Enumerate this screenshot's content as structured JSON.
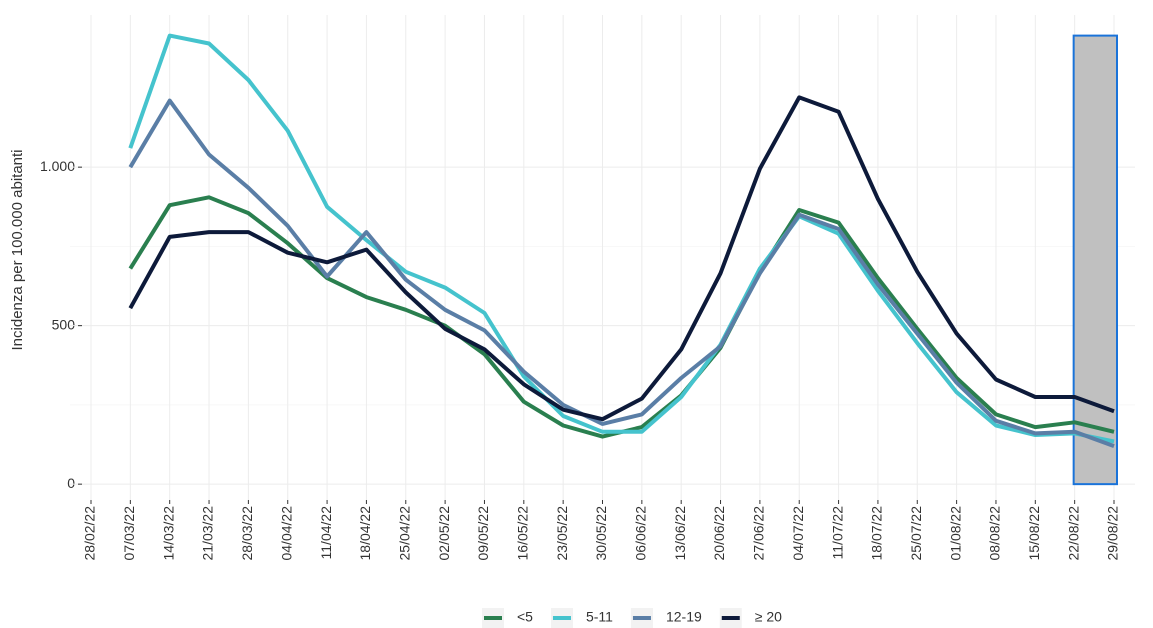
{
  "chart_data": {
    "type": "line",
    "y_label": "Incidenza per 100.000 abitanti",
    "categories": [
      "28/02/22",
      "07/03/22",
      "14/03/22",
      "21/03/22",
      "28/03/22",
      "04/04/22",
      "11/04/22",
      "18/04/22",
      "25/04/22",
      "02/05/22",
      "09/05/22",
      "16/05/22",
      "23/05/22",
      "30/05/22",
      "06/06/22",
      "13/06/22",
      "20/06/22",
      "27/06/22",
      "04/07/22",
      "11/07/22",
      "18/07/22",
      "25/07/22",
      "01/08/22",
      "08/08/22",
      "15/08/22",
      "22/08/22",
      "29/08/22"
    ],
    "series": [
      {
        "name": "<5",
        "color": "#2a7f4f",
        "values": [
          null,
          680,
          880,
          905,
          855,
          760,
          650,
          590,
          550,
          500,
          410,
          260,
          185,
          150,
          180,
          280,
          430,
          670,
          865,
          825,
          650,
          490,
          335,
          220,
          180,
          195,
          165
        ]
      },
      {
        "name": "5-11",
        "color": "#45c3cd",
        "values": [
          null,
          1060,
          1415,
          1390,
          1275,
          1115,
          875,
          770,
          670,
          620,
          540,
          340,
          215,
          165,
          165,
          275,
          440,
          680,
          845,
          790,
          610,
          445,
          290,
          185,
          155,
          160,
          135
        ]
      },
      {
        "name": "12-19",
        "color": "#5a7ea6",
        "values": [
          null,
          1000,
          1210,
          1040,
          935,
          815,
          655,
          795,
          645,
          550,
          485,
          355,
          250,
          190,
          220,
          335,
          435,
          665,
          850,
          805,
          630,
          475,
          320,
          200,
          160,
          165,
          120
        ]
      },
      {
        "name": "≥ 20",
        "color": "#0d1a3a",
        "values": [
          null,
          555,
          780,
          795,
          795,
          730,
          700,
          740,
          605,
          490,
          425,
          315,
          235,
          205,
          270,
          425,
          665,
          995,
          1220,
          1175,
          900,
          670,
          475,
          330,
          275,
          275,
          230
        ]
      }
    ],
    "ylim": [
      -50,
      1480
    ],
    "yticks": [
      0,
      500,
      {
        "value": 1000,
        "label": "1.000"
      }
    ],
    "grid": true,
    "legend": "bottom",
    "highlight": {
      "start": 25,
      "end": 26,
      "ylim": [
        0,
        1415
      ],
      "color": "#c0c0c0",
      "border": "#1a73d9"
    }
  }
}
